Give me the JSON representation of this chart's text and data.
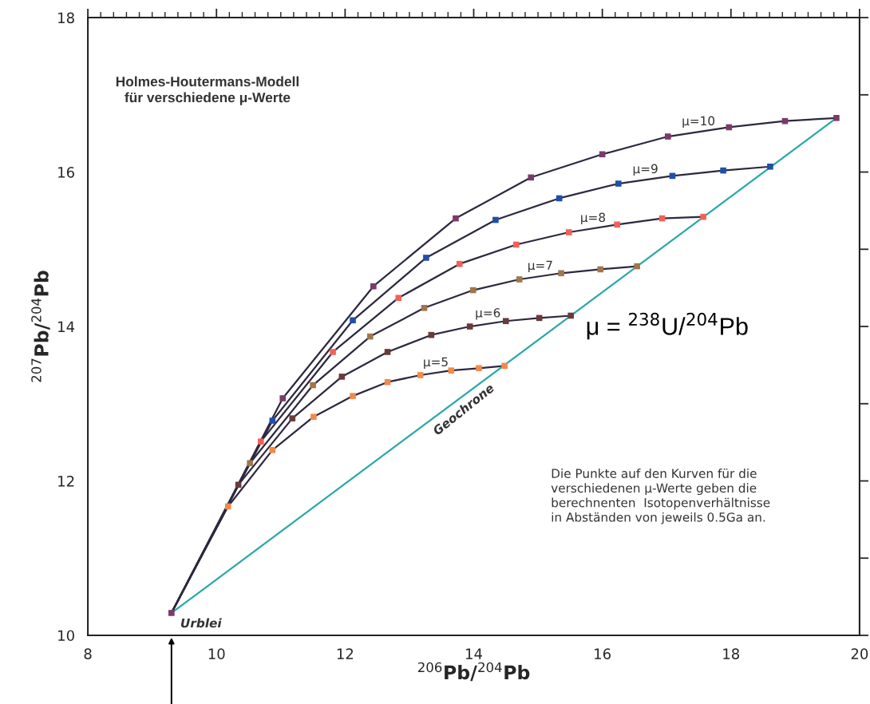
{
  "chart_data": {
    "type": "line",
    "title": "Holmes-Houtermans-Modell\nfür verschiedene μ-Werte",
    "xlabel": "$^{206}$Pb/$^{204}$Pb",
    "ylabel": "$^{207}$Pb/$^{204}$Pb",
    "xlim": [
      8,
      20
    ],
    "ylim": [
      10,
      18
    ],
    "xticks": [
      8,
      10,
      12,
      14,
      16,
      18,
      20
    ],
    "yticks": [
      10,
      {
        "value": 11,
        "label": null
      },
      12,
      {
        "value": 13,
        "label": null
      },
      14,
      {
        "value": 15,
        "label": null
      },
      16,
      {
        "value": 17,
        "label": null
      },
      18
    ],
    "grid": false,
    "legend": false,
    "series": [
      {
        "name": "μ=5",
        "color": "#2e2840",
        "x": [
          9.3,
          10.18,
          10.87,
          11.51,
          12.12,
          12.66,
          13.17,
          13.65,
          14.08,
          14.48
        ],
        "values": [
          10.29,
          11.67,
          12.4,
          12.83,
          13.1,
          13.28,
          13.37,
          13.43,
          13.46,
          13.49
        ]
      },
      {
        "name": "μ=6",
        "color": "#2e2840",
        "x": [
          9.3,
          10.34,
          11.18,
          11.95,
          12.66,
          13.34,
          13.94,
          14.5,
          15.02,
          15.51
        ],
        "values": [
          10.29,
          11.95,
          12.81,
          13.35,
          13.67,
          13.89,
          14.0,
          14.07,
          14.11,
          14.14
        ]
      },
      {
        "name": "μ=7",
        "color": "#2e2840",
        "x": [
          9.3,
          10.52,
          11.5,
          12.39,
          13.23,
          13.99,
          14.71,
          15.36,
          15.97,
          16.54
        ],
        "values": [
          10.29,
          12.23,
          13.24,
          13.87,
          14.24,
          14.47,
          14.61,
          14.69,
          14.74,
          14.78
        ]
      },
      {
        "name": "μ=8",
        "color": "#2e2840",
        "x": [
          9.3,
          10.69,
          11.81,
          12.83,
          13.78,
          14.66,
          15.48,
          16.23,
          16.93,
          17.57
        ],
        "values": [
          10.29,
          12.51,
          13.67,
          14.37,
          14.81,
          15.06,
          15.22,
          15.32,
          15.4,
          15.42
        ]
      },
      {
        "name": "μ=9",
        "color": "#2e2840",
        "x": [
          9.3,
          10.87,
          12.12,
          13.26,
          14.34,
          15.33,
          16.25,
          17.09,
          17.88,
          18.61
        ],
        "values": [
          10.29,
          12.78,
          14.08,
          14.89,
          15.38,
          15.66,
          15.85,
          15.95,
          16.02,
          16.07
        ]
      },
      {
        "name": "μ=10",
        "color": "#2e2840",
        "x": [
          9.3,
          11.03,
          12.44,
          13.72,
          14.89,
          16.0,
          17.02,
          17.97,
          18.84,
          19.64
        ],
        "values": [
          10.29,
          13.07,
          14.52,
          15.4,
          15.93,
          16.23,
          16.46,
          16.58,
          16.66,
          16.7
        ]
      },
      {
        "name": "Geochrone",
        "color": "#2aa8a8",
        "x": [
          9.3,
          19.64
        ],
        "values": [
          10.29,
          16.7
        ]
      },
      {
        "type": "scatter",
        "marker": "square",
        "color": "#f28a4a",
        "x": [
          10.18,
          10.87,
          11.51,
          12.12,
          12.66,
          13.17,
          13.65,
          14.08,
          14.48
        ],
        "values": [
          11.67,
          12.4,
          12.83,
          13.1,
          13.28,
          13.37,
          13.43,
          13.46,
          13.49
        ]
      },
      {
        "type": "scatter",
        "marker": "square",
        "color": "#6b3a3a",
        "x": [
          10.34,
          11.18,
          11.95,
          12.66,
          13.34,
          13.94,
          14.5,
          15.02,
          15.51
        ],
        "values": [
          11.95,
          12.81,
          13.35,
          13.67,
          13.89,
          14.0,
          14.07,
          14.11,
          14.14
        ]
      },
      {
        "type": "scatter",
        "marker": "square",
        "color": "#a0764a",
        "x": [
          10.52,
          11.5,
          12.39,
          13.23,
          13.99,
          14.71,
          15.36,
          15.97,
          16.54
        ],
        "values": [
          12.23,
          13.24,
          13.87,
          14.24,
          14.47,
          14.61,
          14.69,
          14.74,
          14.78
        ]
      },
      {
        "type": "scatter",
        "marker": "square",
        "color": "#f2605a",
        "x": [
          10.69,
          11.81,
          12.83,
          13.78,
          14.66,
          15.48,
          16.23,
          16.93,
          17.57
        ],
        "values": [
          12.51,
          13.67,
          14.37,
          14.81,
          15.06,
          15.22,
          15.32,
          15.4,
          15.42
        ]
      },
      {
        "type": "scatter",
        "marker": "square",
        "color": "#1f4fa8",
        "x": [
          10.87,
          12.12,
          13.26,
          14.34,
          15.33,
          16.25,
          17.09,
          17.88,
          18.61
        ],
        "values": [
          12.78,
          14.08,
          14.89,
          15.38,
          15.66,
          15.85,
          15.95,
          16.02,
          16.07
        ]
      },
      {
        "type": "scatter",
        "marker": "square",
        "color": "#7b3a6b",
        "x": [
          9.3,
          11.03,
          12.44,
          13.72,
          14.89,
          16.0,
          17.02,
          17.97,
          18.84,
          19.64
        ],
        "values": [
          10.29,
          13.07,
          14.52,
          15.4,
          15.93,
          16.23,
          16.46,
          16.58,
          16.66,
          16.7
        ]
      }
    ],
    "annotations": [
      {
        "text": "Urblei",
        "x": 9.3,
        "y": 10.29
      },
      "μ = $^{238}$U/$^{204}$Pb",
      "Die Punkte auf den Kurven für die\nverschiedenen μ-Werte geben die\nberechnenten  Isotopenverhältnisse\nin Abständen von jeweils 0.5Ga an."
    ]
  }
}
